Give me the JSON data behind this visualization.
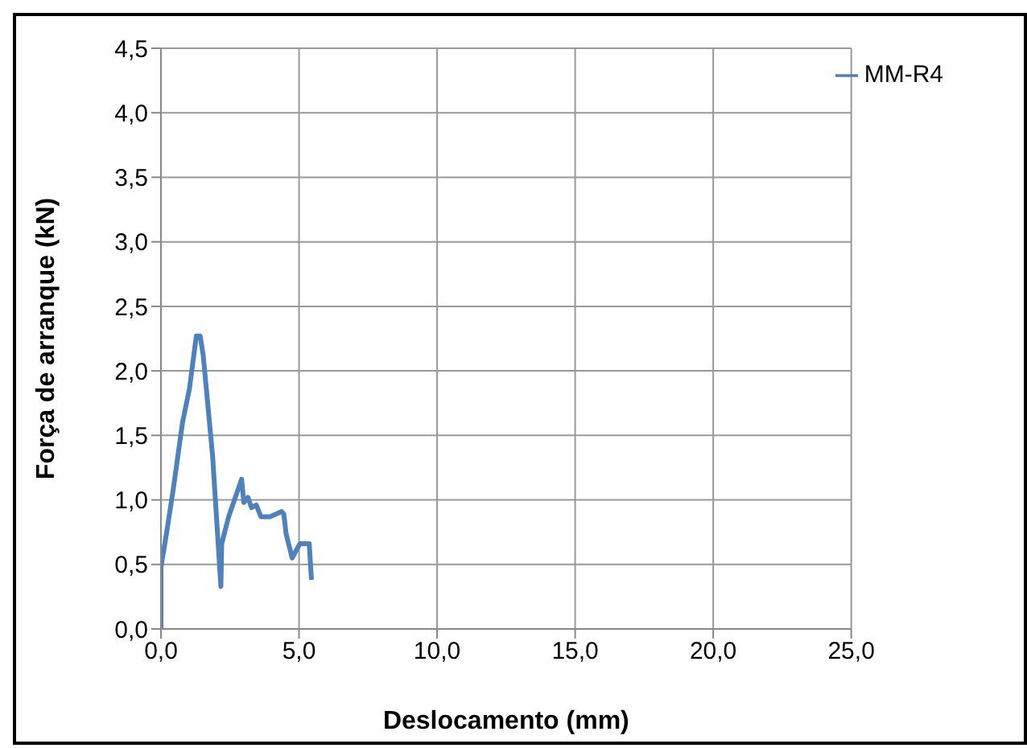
{
  "chart_data": {
    "type": "line",
    "xlabel": "Deslocamento (mm)",
    "ylabel": "Força de arranque (kN)",
    "x": [
      0,
      0,
      0.2,
      0.45,
      0.78,
      1.03,
      1.28,
      1.42,
      1.53,
      1.87,
      2.17,
      2.2,
      2.45,
      2.92,
      3.0,
      3.15,
      3.28,
      3.45,
      3.62,
      3.95,
      4.37,
      4.45,
      4.53,
      4.75,
      5.03,
      5.37,
      5.45
    ],
    "series": [
      {
        "name": "MM-R4",
        "color": "#4f81bd",
        "values": [
          0,
          0.48,
          0.74,
          1.09,
          1.6,
          1.86,
          2.27,
          2.27,
          2.12,
          1.34,
          0.33,
          0.66,
          0.87,
          1.16,
          0.98,
          1.02,
          0.94,
          0.96,
          0.87,
          0.87,
          0.91,
          0.89,
          0.74,
          0.55,
          0.66,
          0.66,
          0.38
        ]
      }
    ],
    "xlim": [
      0,
      25
    ],
    "xticks": [
      {
        "value": 0,
        "label": "0,0"
      },
      {
        "value": 5,
        "label": "5,0"
      },
      {
        "value": 10,
        "label": "10,0"
      },
      {
        "value": 15,
        "label": "15,0"
      },
      {
        "value": 20,
        "label": "20,0"
      },
      {
        "value": 25,
        "label": "25,0"
      }
    ],
    "ylim": [
      0,
      4.5
    ],
    "yticks": [
      {
        "value": 0,
        "label": "0,0"
      },
      {
        "value": 0.5,
        "label": "0,5"
      },
      {
        "value": 1,
        "label": "1,0"
      },
      {
        "value": 1.5,
        "label": "1,5"
      },
      {
        "value": 2,
        "label": "2,0"
      },
      {
        "value": 2.5,
        "label": "2,5"
      },
      {
        "value": 3,
        "label": "3,0"
      },
      {
        "value": 3.5,
        "label": "3,5"
      },
      {
        "value": 4,
        "label": "4,0"
      },
      {
        "value": 4.5,
        "label": "4,5"
      }
    ],
    "grid": true,
    "legend": "top right",
    "marker": "none",
    "line_style": "solid"
  }
}
